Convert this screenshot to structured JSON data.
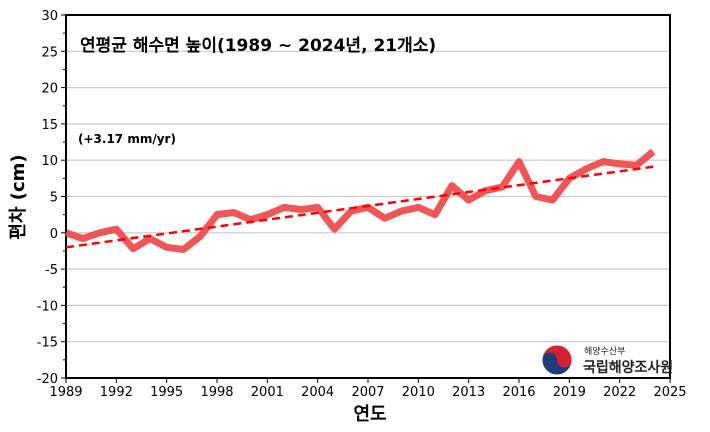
{
  "chart_data": {
    "type": "line",
    "title": "연평균 해수면 높이(1989 ~ 2024년, 21개소)",
    "annotation": "(+3.17 mm/yr)",
    "xlabel": "연도",
    "ylabel": "편차 (cm)",
    "xlim": [
      1989,
      2025
    ],
    "ylim": [
      -20,
      30
    ],
    "xticks": [
      1989,
      1992,
      1995,
      1998,
      2001,
      2004,
      2007,
      2010,
      2013,
      2016,
      2019,
      2022,
      2025
    ],
    "yticks": [
      -20,
      -15,
      -10,
      -5,
      0,
      5,
      10,
      15,
      20,
      25,
      30
    ],
    "grid": "horizontal",
    "colors": {
      "mean": "#ee4444",
      "trend": "#ff0000"
    },
    "x": [
      1989,
      1990,
      1991,
      1992,
      1993,
      1994,
      1995,
      1996,
      1997,
      1998,
      1999,
      2000,
      2001,
      2002,
      2003,
      2004,
      2005,
      2006,
      2007,
      2008,
      2009,
      2010,
      2011,
      2012,
      2013,
      2014,
      2015,
      2016,
      2017,
      2018,
      2019,
      2020,
      2021,
      2022,
      2023,
      2024
    ],
    "series": [
      {
        "values": [
          0,
          -0.8,
          0,
          0.5,
          -2.2,
          -0.8,
          -2,
          -2.3,
          -0.5,
          2.5,
          2.8,
          1.8,
          2.5,
          3.5,
          3.2,
          3.5,
          0.5,
          3,
          3.5,
          2,
          3,
          3.5,
          2.5,
          6.5,
          4.5,
          5.8,
          6.3,
          9.8,
          5,
          4.5,
          7.5,
          8.8,
          9.8,
          9.5,
          9.3,
          11.2
        ]
      }
    ],
    "trend": {
      "x": [
        1989,
        2024
      ],
      "y": [
        -2,
        9.1
      ],
      "style": "dashed"
    }
  },
  "logo": {
    "ministry": "해양수산부",
    "agency": "국립해양조사원"
  }
}
